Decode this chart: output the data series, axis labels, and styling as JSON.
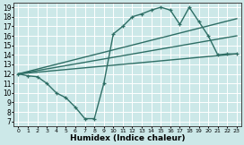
{
  "xlabel": "Humidex (Indice chaleur)",
  "background_color": "#cce8e8",
  "grid_color": "#ffffff",
  "line_color": "#2e6e65",
  "xlim": [
    -0.5,
    23.5
  ],
  "ylim": [
    6.5,
    19.5
  ],
  "xticks": [
    0,
    1,
    2,
    3,
    4,
    5,
    6,
    7,
    8,
    9,
    10,
    11,
    12,
    13,
    14,
    15,
    16,
    17,
    18,
    19,
    20,
    21,
    22,
    23
  ],
  "yticks": [
    7,
    8,
    9,
    10,
    11,
    12,
    13,
    14,
    15,
    16,
    17,
    18,
    19
  ],
  "curve1_x": [
    0,
    1,
    2,
    3,
    4,
    5,
    6,
    7,
    8,
    9,
    10,
    11,
    12,
    13,
    14,
    15,
    16,
    17,
    18,
    19,
    20,
    21,
    22,
    23
  ],
  "curve1_y": [
    12.0,
    11.8,
    11.7,
    11.0,
    10.0,
    9.5,
    8.5,
    7.3,
    7.3,
    11.0,
    16.2,
    17.0,
    18.0,
    18.3,
    18.7,
    19.0,
    18.7,
    17.2,
    19.0,
    17.5,
    16.0,
    14.0,
    14.1,
    14.1
  ],
  "line1_x": [
    0,
    23
  ],
  "line1_y": [
    12.0,
    14.1
  ],
  "line2_x": [
    0,
    23
  ],
  "line2_y": [
    12.0,
    16.0
  ],
  "line3_x": [
    0,
    23
  ],
  "line3_y": [
    12.0,
    17.8
  ],
  "linewidth": 1.0
}
